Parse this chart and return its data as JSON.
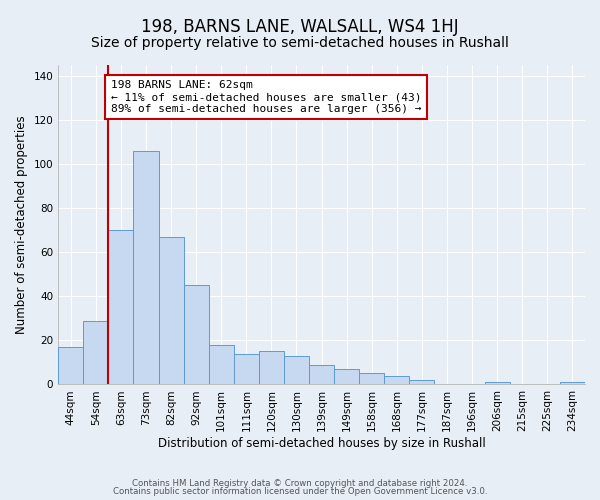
{
  "title": "198, BARNS LANE, WALSALL, WS4 1HJ",
  "subtitle": "Size of property relative to semi-detached houses in Rushall",
  "xlabel": "Distribution of semi-detached houses by size in Rushall",
  "ylabel": "Number of semi-detached properties",
  "annotation_line1": "198 BARNS LANE: 62sqm",
  "annotation_line2": "← 11% of semi-detached houses are smaller (43)",
  "annotation_line3": "89% of semi-detached houses are larger (356) →",
  "bar_labels": [
    "44sqm",
    "54sqm",
    "63sqm",
    "73sqm",
    "82sqm",
    "92sqm",
    "101sqm",
    "111sqm",
    "120sqm",
    "130sqm",
    "139sqm",
    "149sqm",
    "158sqm",
    "168sqm",
    "177sqm",
    "187sqm",
    "196sqm",
    "206sqm",
    "215sqm",
    "225sqm",
    "234sqm"
  ],
  "bar_values": [
    17,
    29,
    70,
    106,
    67,
    45,
    18,
    14,
    15,
    13,
    9,
    7,
    5,
    4,
    2,
    0,
    0,
    1,
    0,
    0,
    1
  ],
  "bar_color": "#c6d9f0",
  "bar_edge_color": "#5b9bd5",
  "vline_color": "#c00000",
  "annotation_box_edge": "#c00000",
  "background_color": "#e8eef5",
  "plot_bg_color": "#e8eef5",
  "grid_color": "#ffffff",
  "title_fontsize": 12,
  "subtitle_fontsize": 10,
  "axis_label_fontsize": 8.5,
  "tick_fontsize": 7.5,
  "annotation_fontsize": 8,
  "ylim": [
    0,
    145
  ],
  "footer_line1": "Contains HM Land Registry data © Crown copyright and database right 2024.",
  "footer_line2": "Contains public sector information licensed under the Open Government Licence v3.0."
}
